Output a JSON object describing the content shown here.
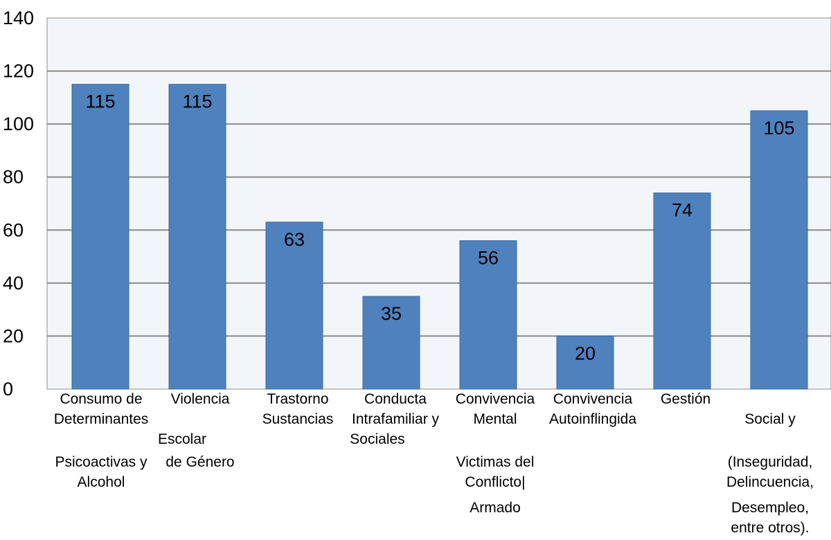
{
  "chart_data": {
    "type": "bar",
    "title": "",
    "xlabel": "",
    "ylabel": "",
    "ylim": [
      0,
      140
    ],
    "yticks": [
      0,
      20,
      40,
      60,
      80,
      100,
      120,
      140
    ],
    "ytick_labels": [
      "0",
      "20",
      "40",
      "60",
      "80",
      "100",
      "120",
      "140"
    ],
    "grid": true,
    "legend": "none",
    "bar_color": "#4f81bd",
    "plot_background": "#f2f6fb",
    "categories": [
      "Consumo de Sustancias Psicoactivas y Alcohol",
      "Violencia Intrafamiliar y de Género",
      "Convivencia Escolar",
      "Trastorno Mental",
      "Determinantes Sociales",
      "Convivencia Victimas del Conflicto Armado",
      "Conducta Autoinflingida",
      "Gestión Social y (Inseguridad, Delincuencia, Desempleo, entre otros)."
    ],
    "values": [
      115,
      115,
      63,
      35,
      56,
      20,
      74,
      105
    ],
    "data_labels": [
      "115",
      "115",
      "63",
      "35",
      "56",
      "20",
      "74",
      "105"
    ],
    "category_label_lines": [
      {
        "text": "Consumo de"
      },
      {
        "text": "Violencia"
      },
      {
        "text": "Trastorno"
      },
      {
        "text": "Conducta"
      },
      {
        "text": "Convivencia"
      },
      {
        "text": "Convivencia"
      },
      {
        "text": "Gestión"
      },
      {
        "text": "Determinantes"
      },
      {
        "text": "Sustancias"
      },
      {
        "text": "Intrafamiliar y"
      },
      {
        "text": "Mental"
      },
      {
        "text": "Autoinflingida"
      },
      {
        "text": "Social y"
      },
      {
        "text": "Escolar"
      },
      {
        "text": "Sociales"
      },
      {
        "text": "Psicoactivas y"
      },
      {
        "text": "de Género"
      },
      {
        "text": "Victimas del"
      },
      {
        "text": "(Inseguridad,"
      },
      {
        "text": "Alcohol"
      },
      {
        "text": "Conflicto|"
      },
      {
        "text": "Delincuencia,"
      },
      {
        "text": "Armado"
      },
      {
        "text": "Desempleo,"
      },
      {
        "text": "entre otros)."
      }
    ]
  }
}
